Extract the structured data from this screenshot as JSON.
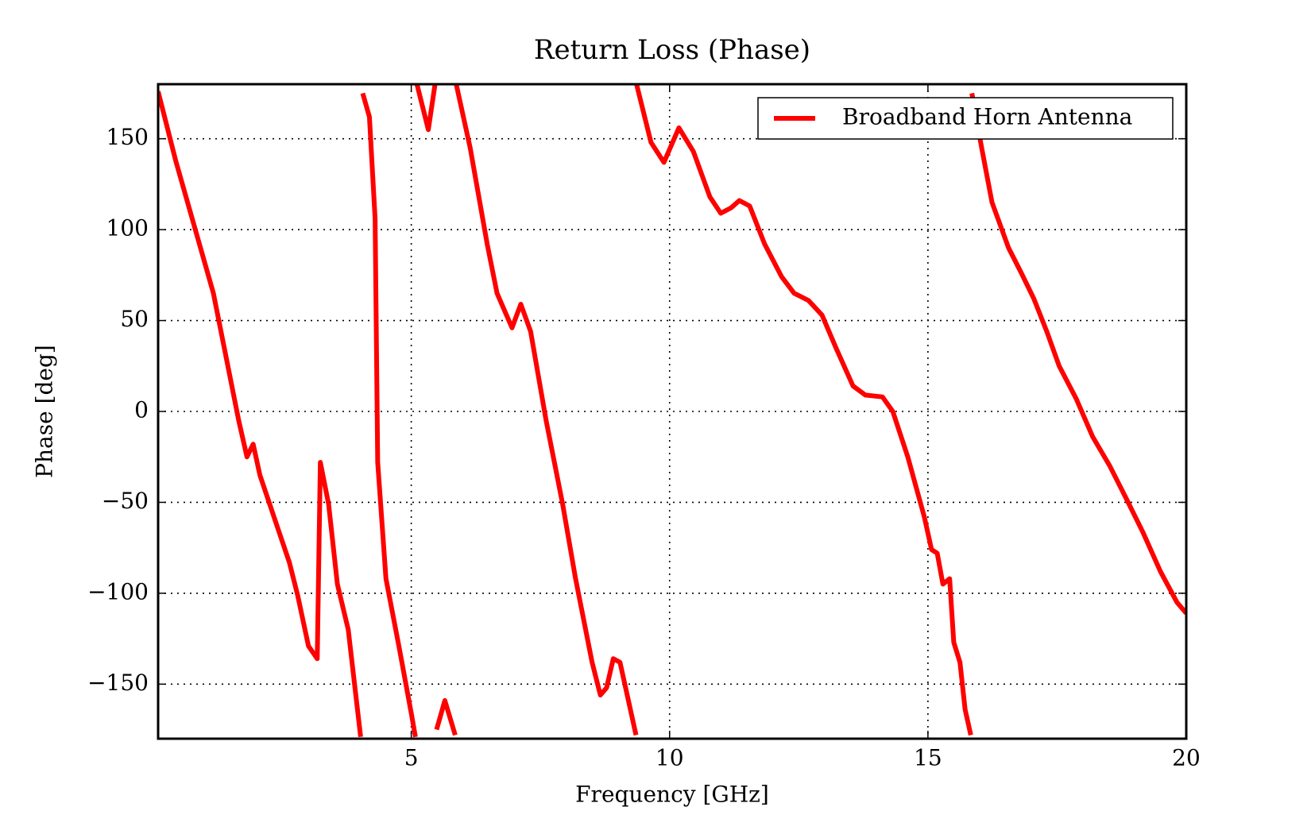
{
  "chart_data": {
    "type": "line",
    "title": "Return Loss (Phase)",
    "xlabel": "Frequency [GHz]",
    "ylabel": "Phase [deg]",
    "x": [
      0.1,
      0.44,
      1.17,
      1.66,
      1.82,
      1.94,
      2.07,
      2.39,
      2.64,
      2.8,
      3.01,
      3.18,
      3.24,
      3.4,
      3.57,
      3.78,
      4.02,
      4.04,
      4.06,
      4.19,
      4.3,
      4.35,
      4.51,
      4.76,
      5.0,
      5.08,
      5.1,
      5.11,
      5.33,
      5.46,
      5.48,
      5.49,
      5.65,
      5.85,
      5.86,
      5.87,
      6.14,
      6.47,
      6.66,
      6.95,
      7.12,
      7.31,
      7.61,
      7.93,
      8.18,
      8.5,
      8.66,
      8.78,
      8.91,
      9.04,
      9.35,
      9.355,
      9.36,
      9.64,
      9.89,
      10.18,
      10.46,
      10.78,
      10.99,
      11.19,
      11.35,
      11.55,
      11.84,
      12.17,
      12.41,
      12.69,
      12.95,
      13.22,
      13.55,
      13.79,
      14.12,
      14.32,
      14.61,
      14.93,
      15.07,
      15.18,
      15.29,
      15.42,
      15.5,
      15.62,
      15.72,
      15.83,
      15.84,
      15.85,
      16.04,
      16.24,
      16.56,
      16.81,
      17.05,
      17.3,
      17.54,
      17.87,
      18.19,
      18.52,
      18.84,
      19.17,
      19.5,
      19.82,
      20.0
    ],
    "series": [
      {
        "name": "Broadband Horn Antenna",
        "color": "#ff0000",
        "values": [
          176,
          138,
          65,
          -5,
          -25,
          -18,
          -35,
          -62,
          -83,
          -101,
          -129,
          -136,
          -28,
          -51,
          -95,
          -120,
          -179,
          null,
          175,
          162,
          106,
          -28,
          -92,
          -129,
          -166,
          -179,
          null,
          180,
          155,
          180,
          null,
          -175,
          -159,
          -178,
          null,
          180,
          145,
          92,
          65,
          46,
          59,
          44,
          -5,
          -51,
          -92,
          -138,
          -156,
          -152,
          -136,
          -138,
          -178,
          null,
          180,
          148,
          137,
          156,
          143,
          118,
          109,
          112,
          116,
          113,
          92,
          74,
          65,
          61,
          53,
          35,
          14,
          9,
          8,
          0,
          -25,
          -58,
          -76,
          -78,
          -95,
          -92,
          -127,
          -138,
          -164,
          -178,
          null,
          175,
          145,
          115,
          90,
          76,
          62,
          44,
          25,
          7,
          -14,
          -30,
          -48,
          -67,
          -88,
          -105,
          -111
        ]
      }
    ],
    "xlim": [
      0.1,
      20
    ],
    "xticks": [
      5,
      10,
      15,
      20
    ],
    "ylim": [
      -180,
      180
    ],
    "yticks": [
      {
        "value": -150,
        "label": "−150"
      },
      {
        "value": -100,
        "label": "−100"
      },
      {
        "value": -50,
        "label": "−50"
      },
      0,
      50,
      100,
      150
    ],
    "grid": true,
    "legend": "upper right"
  }
}
